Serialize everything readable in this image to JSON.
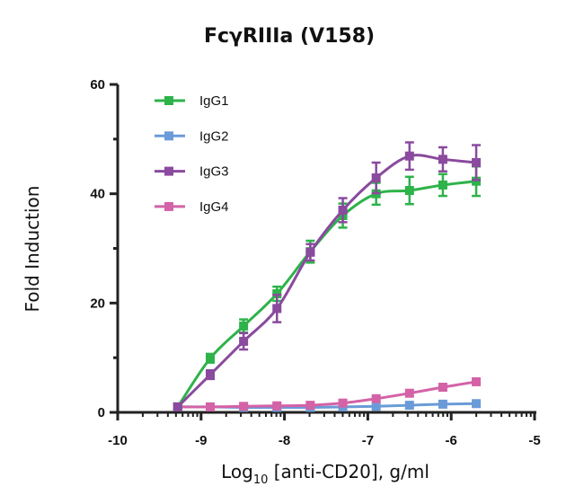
{
  "chart_data": {
    "type": "line",
    "title": "FcγRIIIa (V158)",
    "xlabel_main": "Log",
    "xlabel_sub": "10",
    "xlabel_rest": " [anti-CD20], g/ml",
    "ylabel": "Fold Induction",
    "xlim": [
      -10,
      -5
    ],
    "ylim": [
      0,
      60
    ],
    "x_ticks": [
      "-10",
      "-9",
      "-8",
      "-7",
      "-6",
      "-5"
    ],
    "y_ticks": [
      "0",
      "20",
      "40",
      "60"
    ],
    "x_scale": "log10 concentration, minor log ticks",
    "legend_position": "top-left",
    "grid": false,
    "x": [
      -9.28,
      -8.89,
      -8.49,
      -8.09,
      -7.69,
      -7.3,
      -6.9,
      -6.5,
      -6.1,
      -5.7
    ],
    "series": [
      {
        "name": "IgG1",
        "color": "#2db34a",
        "values": [
          1.0,
          9.9,
          15.8,
          21.7,
          29.4,
          36.0,
          40.0,
          40.6,
          41.6,
          42.3
        ],
        "errors": [
          0.3,
          0.8,
          1.2,
          1.3,
          2.0,
          2.2,
          2.0,
          2.5,
          2.0,
          2.7
        ]
      },
      {
        "name": "IgG2",
        "color": "#6a9bd8",
        "values": [
          1.0,
          1.0,
          0.9,
          0.9,
          0.9,
          1.0,
          1.1,
          1.3,
          1.5,
          1.6
        ],
        "errors": [
          0.2,
          0.2,
          0.2,
          0.2,
          0.2,
          0.2,
          0.2,
          0.2,
          0.2,
          0.2
        ]
      },
      {
        "name": "IgG3",
        "color": "#8a4a9e",
        "values": [
          1.0,
          6.9,
          13.0,
          19.0,
          29.3,
          37.0,
          42.9,
          46.9,
          46.3,
          45.7
        ],
        "errors": [
          0.3,
          0.8,
          1.5,
          2.5,
          1.5,
          2.2,
          2.8,
          2.5,
          2.2,
          3.2
        ]
      },
      {
        "name": "IgG4",
        "color": "#d462a6",
        "values": [
          1.0,
          1.0,
          1.1,
          1.2,
          1.3,
          1.7,
          2.5,
          3.5,
          4.6,
          5.6
        ],
        "errors": [
          0.2,
          0.2,
          0.2,
          0.2,
          0.2,
          0.2,
          0.3,
          0.3,
          0.3,
          0.4
        ]
      }
    ]
  }
}
